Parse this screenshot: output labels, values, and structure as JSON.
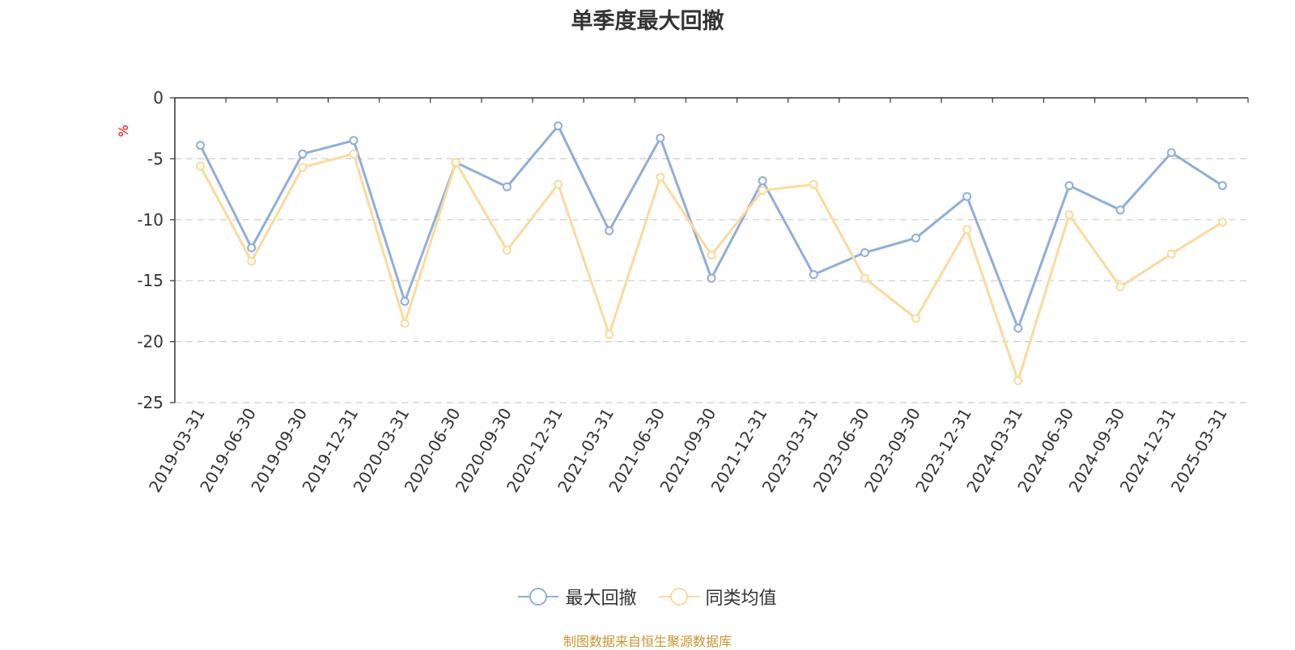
{
  "chart_data": {
    "type": "line",
    "title": "单季度最大回撤",
    "ylabel": "%",
    "xlabel": "",
    "categories": [
      "2019-03-31",
      "2019-06-30",
      "2019-09-30",
      "2019-12-31",
      "2020-03-31",
      "2020-06-30",
      "2020-09-30",
      "2020-12-31",
      "2021-03-31",
      "2021-06-30",
      "2021-09-30",
      "2021-12-31",
      "2023-03-31",
      "2023-06-30",
      "2023-09-30",
      "2023-12-31",
      "2024-03-31",
      "2024-06-30",
      "2024-09-30",
      "2024-12-31",
      "2025-03-31"
    ],
    "series": [
      {
        "name": "最大回撤",
        "color": "#8eaedb",
        "values": [
          -3.9,
          -12.3,
          -4.6,
          -3.5,
          -16.7,
          -5.3,
          -7.3,
          -2.3,
          -10.9,
          -3.3,
          -14.8,
          -6.8,
          -14.5,
          -12.7,
          -11.5,
          -8.1,
          -18.9,
          -7.2,
          -9.2,
          -4.5,
          -7.2
        ]
      },
      {
        "name": "同类均值",
        "color": "#fdd99b",
        "values": [
          -5.6,
          -13.4,
          -5.7,
          -4.6,
          -18.5,
          -5.3,
          -12.5,
          -7.1,
          -19.4,
          -6.5,
          -12.9,
          -7.6,
          -7.1,
          -14.8,
          -18.1,
          -10.8,
          -23.2,
          -9.6,
          -15.5,
          -12.8,
          -10.2
        ]
      }
    ],
    "ylim": [
      -25,
      0
    ],
    "yticks": [
      0,
      -5,
      -10,
      -15,
      -20,
      -25
    ],
    "grid": true,
    "legend_position": "bottom"
  },
  "footer": {
    "source": "制图数据来自恒生聚源数据库"
  }
}
